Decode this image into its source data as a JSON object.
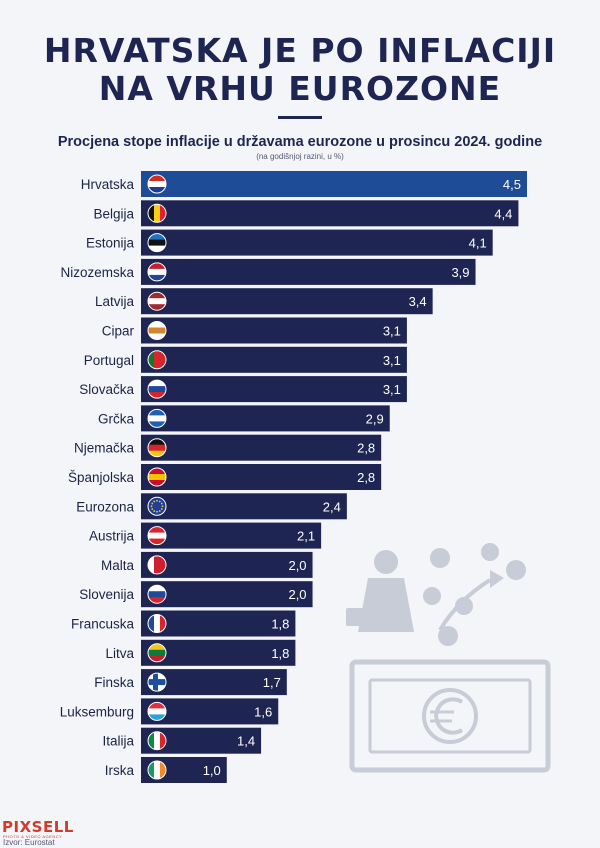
{
  "header": {
    "title_line1": "HRVATSKA JE PO INFLACIJI",
    "title_line2": "NA VRHU EUROZONE"
  },
  "footer": {
    "logo": "PIXSELL",
    "logo_tagline": "PHOTO & VIDEO AGENCY",
    "source": "Izvor: Eurostat"
  },
  "colors": {
    "bar": "#1e2552",
    "bar_highlight": "#1f4c96",
    "text": "#1b2348",
    "illustration": "#c8ccd6"
  },
  "chart_data": {
    "type": "bar",
    "orientation": "horizontal",
    "title": "Procjena stope inflacije u državama eurozone u prosincu 2024. godine",
    "subtitle": "(na godišnjoj razini, u %)",
    "xlabel": "",
    "ylabel": "",
    "xlim": [
      0,
      4.5
    ],
    "grid": false,
    "highlight": "Hrvatska",
    "categories": [
      "Hrvatska",
      "Belgija",
      "Estonija",
      "Nizozemska",
      "Latvija",
      "Cipar",
      "Portugal",
      "Slovačka",
      "Grčka",
      "Njemačka",
      "Španjolska",
      "Eurozona",
      "Austrija",
      "Malta",
      "Slovenija",
      "Francuska",
      "Litva",
      "Finska",
      "Luksemburg",
      "Italija",
      "Irska"
    ],
    "values": [
      4.5,
      4.4,
      4.1,
      3.9,
      3.4,
      3.1,
      3.1,
      3.1,
      2.9,
      2.8,
      2.8,
      2.4,
      2.1,
      2.0,
      2.0,
      1.8,
      1.8,
      1.7,
      1.6,
      1.4,
      1.0
    ],
    "value_labels": [
      "4,5",
      "4,4",
      "4,1",
      "3,9",
      "3,4",
      "3,1",
      "3,1",
      "3,1",
      "2,9",
      "2,8",
      "2,8",
      "2,4",
      "2,1",
      "2,0",
      "2,0",
      "1,8",
      "1,8",
      "1,7",
      "1,6",
      "1,4",
      "1,0"
    ],
    "flag_icons": [
      "flag-croatia-icon",
      "flag-belgium-icon",
      "flag-estonia-icon",
      "flag-netherlands-icon",
      "flag-latvia-icon",
      "flag-cyprus-icon",
      "flag-portugal-icon",
      "flag-slovakia-icon",
      "flag-greece-icon",
      "flag-germany-icon",
      "flag-spain-icon",
      "flag-eu-icon",
      "flag-austria-icon",
      "flag-malta-icon",
      "flag-slovenia-icon",
      "flag-france-icon",
      "flag-lithuania-icon",
      "flag-finland-icon",
      "flag-luxembourg-icon",
      "flag-italy-icon",
      "flag-ireland-icon"
    ]
  }
}
